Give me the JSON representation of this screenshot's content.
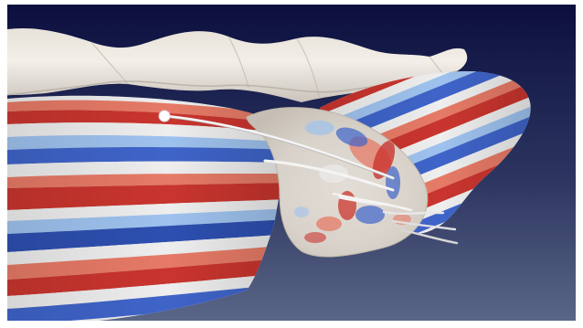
{
  "scene": {
    "background_colors": [
      "#0c0f3e",
      "#2c3560",
      "#5a6686"
    ],
    "frame_color": "#ffffff",
    "field_colors": {
      "red": "#c9352e",
      "orange_red": "#e67a66",
      "white": "#eeeeee",
      "light_blue": "#9ec2ee",
      "blue": "#3f64c9",
      "deep_blue": "#2d4fb0"
    },
    "surfaces": [
      "upper-ribbon",
      "left-striped-tube",
      "right-striped-tube",
      "cross-section-disk"
    ],
    "features": [
      "streamline-probes",
      "probe-marker"
    ]
  }
}
